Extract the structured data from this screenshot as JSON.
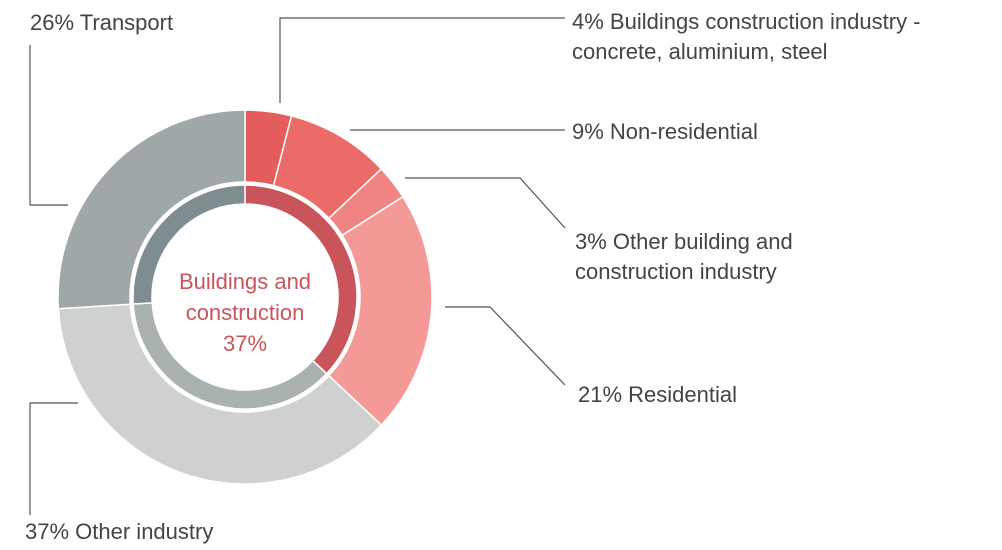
{
  "chart_data": {
    "type": "donut",
    "rings": [
      {
        "categories": [
          "Buildings construction industry - concrete, aluminium, steel",
          "Non-residential",
          "Other building and construction industry",
          "Residential",
          "Other industry",
          "Transport"
        ],
        "values": [
          4,
          9,
          3,
          21,
          37,
          26
        ],
        "value_labels": [
          "4%",
          "9%",
          "3%",
          "21%",
          "37%",
          "26%"
        ],
        "colors": [
          "#e55c5c",
          "#ea6b67",
          "#f08482",
          "#f59997",
          "#cfd1d0",
          "#a0a7a9"
        ]
      },
      {
        "categories": [
          "Buildings and construction",
          null,
          null
        ],
        "values": [
          37,
          37,
          26
        ],
        "value_labels": [
          "37%",
          null,
          null
        ],
        "colors": [
          "#c9545a",
          "#a9b1b1",
          "#7f8d90"
        ]
      }
    ]
  }
}
